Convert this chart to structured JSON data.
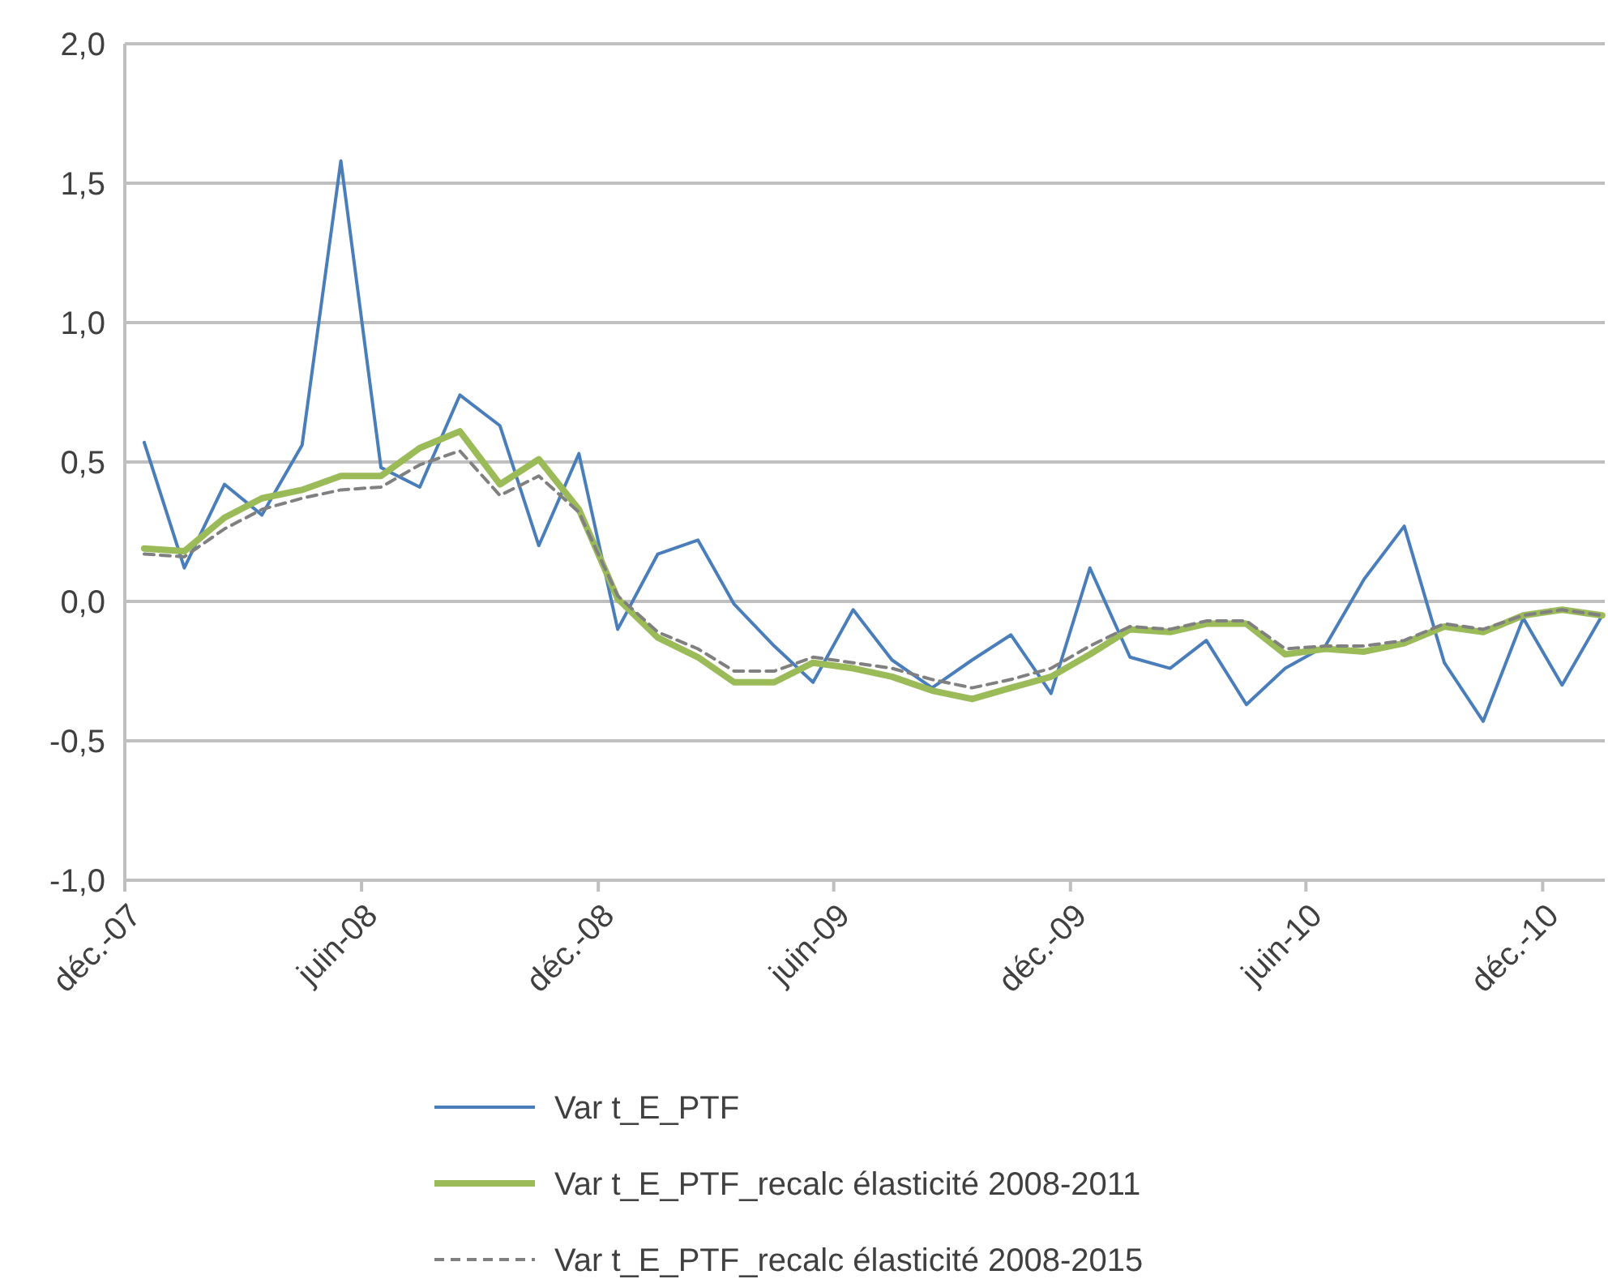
{
  "chart_data": {
    "type": "line",
    "x": [
      "2007-12-16",
      "2008-01-16",
      "2008-02-16",
      "2008-03-16",
      "2008-04-16",
      "2008-05-16",
      "2008-06-16",
      "2008-07-16",
      "2008-08-16",
      "2008-09-16",
      "2008-10-16",
      "2008-11-16",
      "2008-12-16",
      "2009-01-16",
      "2009-02-16",
      "2009-03-16",
      "2009-04-16",
      "2009-05-16",
      "2009-06-16",
      "2009-07-16",
      "2009-08-16",
      "2009-09-16",
      "2009-10-16",
      "2009-11-16",
      "2009-12-16",
      "2010-01-16",
      "2010-02-16",
      "2010-03-16",
      "2010-04-16",
      "2010-05-16",
      "2010-06-16",
      "2010-07-16",
      "2010-08-16",
      "2010-09-16",
      "2010-10-16",
      "2010-11-16",
      "2010-12-16",
      "2011-01-16"
    ],
    "series": [
      {
        "name": "Var t_E_PTF",
        "color": "#4a7ebb",
        "line_style": "solid",
        "values": [
          0.57,
          0.12,
          0.42,
          0.31,
          0.56,
          1.58,
          0.48,
          0.41,
          0.74,
          0.63,
          0.2,
          0.53,
          -0.1,
          0.17,
          0.22,
          -0.01,
          -0.16,
          -0.29,
          -0.03,
          -0.21,
          -0.31,
          -0.21,
          -0.12,
          -0.33,
          0.12,
          -0.2,
          -0.24,
          -0.14,
          -0.37,
          -0.24,
          -0.16,
          0.08,
          0.27,
          -0.22,
          -0.43,
          -0.06,
          -0.3,
          -0.05
        ]
      },
      {
        "name": "Var t_E_PTF_recalc élasticité 2008-2011",
        "color": "#9bbb59",
        "line_style": "solid",
        "values": [
          0.19,
          0.18,
          0.3,
          0.37,
          0.4,
          0.45,
          0.45,
          0.55,
          0.61,
          0.42,
          0.51,
          0.33,
          0.01,
          -0.13,
          -0.2,
          -0.29,
          -0.29,
          -0.22,
          -0.24,
          -0.27,
          -0.32,
          -0.35,
          -0.31,
          -0.27,
          -0.19,
          -0.1,
          -0.11,
          -0.08,
          -0.08,
          -0.19,
          -0.17,
          -0.18,
          -0.15,
          -0.09,
          -0.11,
          -0.05,
          -0.03,
          -0.05
        ]
      },
      {
        "name": "Var t_E_PTF_recalc élasticité 2008-2015",
        "color": "#808080",
        "line_style": "dashed",
        "values": [
          0.17,
          0.16,
          0.26,
          0.33,
          0.37,
          0.4,
          0.41,
          0.49,
          0.54,
          0.38,
          0.45,
          0.32,
          0.02,
          -0.11,
          -0.17,
          -0.25,
          -0.25,
          -0.2,
          -0.22,
          -0.24,
          -0.28,
          -0.31,
          -0.28,
          -0.24,
          -0.16,
          -0.09,
          -0.1,
          -0.07,
          -0.07,
          -0.17,
          -0.16,
          -0.16,
          -0.14,
          -0.08,
          -0.1,
          -0.05,
          -0.03,
          -0.05
        ]
      }
    ],
    "xlim": [
      "2007-12-01",
      "2011-01-18"
    ],
    "xticks": [
      {
        "value": "2007-12-01",
        "label": "déc.-07"
      },
      {
        "value": "2008-06-01",
        "label": "juin-08"
      },
      {
        "value": "2008-12-01",
        "label": "déc.-08"
      },
      {
        "value": "2009-06-01",
        "label": "juin-09"
      },
      {
        "value": "2009-12-01",
        "label": "déc.-09"
      },
      {
        "value": "2010-06-01",
        "label": "juin-10"
      },
      {
        "value": "2010-12-01",
        "label": "déc.-10"
      }
    ],
    "ylim": [
      -1.0,
      2.0
    ],
    "yticks": [
      {
        "value": -1.0,
        "label": "-1,0"
      },
      {
        "value": -0.5,
        "label": "-0,5"
      },
      {
        "value": 0.0,
        "label": "0,0"
      },
      {
        "value": 0.5,
        "label": "0,5"
      },
      {
        "value": 1.0,
        "label": "1,0"
      },
      {
        "value": 1.5,
        "label": "1,5"
      },
      {
        "value": 2.0,
        "label": "2,0"
      }
    ],
    "grid": "y",
    "legend": "bottom",
    "marker": "none"
  }
}
